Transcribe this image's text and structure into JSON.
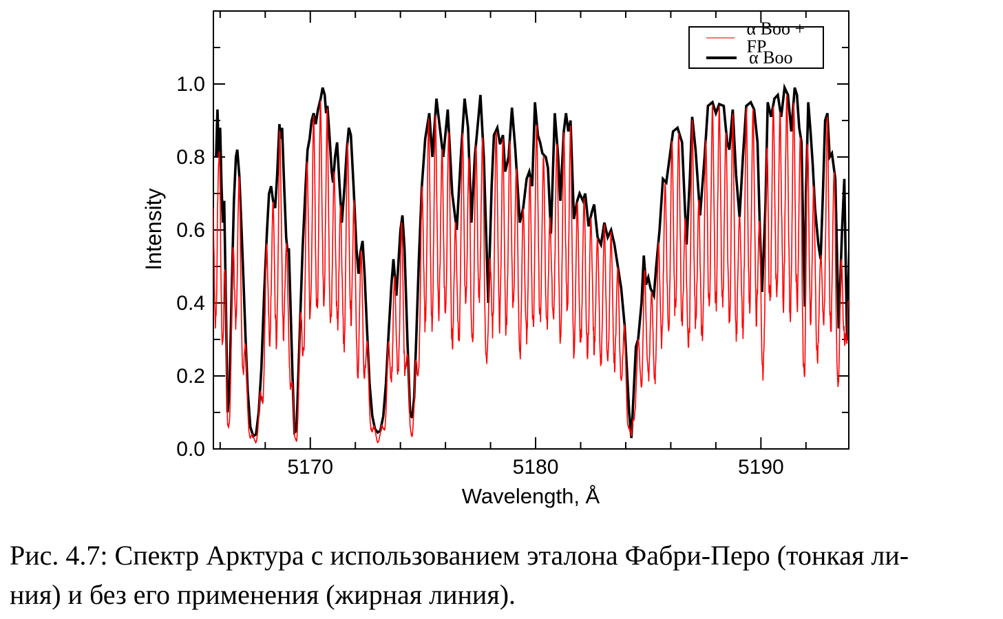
{
  "figure": {
    "caption_line1": "Рис. 4.7: Спектр Арктура с использованием эталона Фабри-Перо (тонкая ли-",
    "caption_line2": "ния) и без его применения (жирная линия)."
  },
  "axes": {
    "x_label": "Wavelength, Å",
    "y_label": "Intensity",
    "x_tick_labels": [
      "5170",
      "5180",
      "5190"
    ],
    "y_tick_labels": [
      "0.0",
      "0.2",
      "0.4",
      "0.6",
      "0.8",
      "1.0"
    ],
    "frame_color": "#000000"
  },
  "legend": {
    "entries": [
      {
        "label": "α Boo + FP",
        "color": "#ff7070",
        "thickness": 2
      },
      {
        "label": "α Boo",
        "color": "#000000",
        "thickness": 4
      }
    ]
  },
  "chart_data": {
    "type": "line",
    "title": "",
    "xlabel": "Wavelength, Å",
    "ylabel": "Intensity",
    "xlim": [
      5165.7,
      5193.9
    ],
    "ylim": [
      0,
      1.2
    ],
    "x_major_ticks": [
      5170,
      5180,
      5190
    ],
    "x_minor_tick_step": 2,
    "y_major_ticks": [
      0,
      0.2,
      0.4,
      0.6,
      0.8,
      1.0
    ],
    "y_minor_tick_step": 0.1,
    "grid": false,
    "legend_position": "top-right",
    "series": [
      {
        "name": "α Boo",
        "role": "stellar-spectrum-thick-line",
        "color": "#000000",
        "line_width": 3.6,
        "points": [
          [
            5165.82,
            0.8
          ],
          [
            5165.88,
            0.93
          ],
          [
            5165.94,
            0.8
          ],
          [
            5166.0,
            0.88
          ],
          [
            5166.06,
            0.72
          ],
          [
            5166.12,
            0.62
          ],
          [
            5166.18,
            0.68
          ],
          [
            5166.24,
            0.45
          ],
          [
            5166.33,
            0.1
          ],
          [
            5166.42,
            0.18
          ],
          [
            5166.52,
            0.45
          ],
          [
            5166.61,
            0.68
          ],
          [
            5166.7,
            0.8
          ],
          [
            5166.76,
            0.82
          ],
          [
            5166.85,
            0.75
          ],
          [
            5166.95,
            0.6
          ],
          [
            5167.04,
            0.45
          ],
          [
            5167.13,
            0.3
          ],
          [
            5167.22,
            0.16
          ],
          [
            5167.34,
            0.06
          ],
          [
            5167.47,
            0.035
          ],
          [
            5167.59,
            0.04
          ],
          [
            5167.71,
            0.1
          ],
          [
            5167.83,
            0.22
          ],
          [
            5167.95,
            0.42
          ],
          [
            5168.08,
            0.6
          ],
          [
            5168.17,
            0.7
          ],
          [
            5168.26,
            0.72
          ],
          [
            5168.35,
            0.68
          ],
          [
            5168.44,
            0.66
          ],
          [
            5168.53,
            0.75
          ],
          [
            5168.63,
            0.89
          ],
          [
            5168.69,
            0.85
          ],
          [
            5168.75,
            0.88
          ],
          [
            5168.84,
            0.72
          ],
          [
            5168.93,
            0.58
          ],
          [
            5168.99,
            0.54
          ],
          [
            5169.05,
            0.55
          ],
          [
            5169.11,
            0.42
          ],
          [
            5169.21,
            0.2
          ],
          [
            5169.3,
            0.045
          ],
          [
            5169.39,
            0.05
          ],
          [
            5169.48,
            0.22
          ],
          [
            5169.57,
            0.39
          ],
          [
            5169.66,
            0.55
          ],
          [
            5169.79,
            0.72
          ],
          [
            5169.88,
            0.82
          ],
          [
            5169.97,
            0.85
          ],
          [
            5170.06,
            0.9
          ],
          [
            5170.15,
            0.92
          ],
          [
            5170.24,
            0.89
          ],
          [
            5170.34,
            0.93
          ],
          [
            5170.46,
            0.96
          ],
          [
            5170.55,
            0.99
          ],
          [
            5170.64,
            0.97
          ],
          [
            5170.7,
            0.92
          ],
          [
            5170.76,
            0.94
          ],
          [
            5170.85,
            0.86
          ],
          [
            5170.95,
            0.76
          ],
          [
            5171.01,
            0.73
          ],
          [
            5171.1,
            0.8
          ],
          [
            5171.19,
            0.84
          ],
          [
            5171.3,
            0.72
          ],
          [
            5171.4,
            0.62
          ],
          [
            5171.52,
            0.72
          ],
          [
            5171.62,
            0.82
          ],
          [
            5171.71,
            0.88
          ],
          [
            5171.8,
            0.86
          ],
          [
            5171.92,
            0.72
          ],
          [
            5172.05,
            0.55
          ],
          [
            5172.14,
            0.48
          ],
          [
            5172.23,
            0.54
          ],
          [
            5172.32,
            0.57
          ],
          [
            5172.41,
            0.48
          ],
          [
            5172.5,
            0.35
          ],
          [
            5172.63,
            0.18
          ],
          [
            5172.75,
            0.09
          ],
          [
            5172.87,
            0.055
          ],
          [
            5172.99,
            0.045
          ],
          [
            5173.11,
            0.05
          ],
          [
            5173.24,
            0.09
          ],
          [
            5173.36,
            0.18
          ],
          [
            5173.48,
            0.32
          ],
          [
            5173.6,
            0.45
          ],
          [
            5173.69,
            0.52
          ],
          [
            5173.82,
            0.42
          ],
          [
            5174.0,
            0.6
          ],
          [
            5174.09,
            0.64
          ],
          [
            5174.18,
            0.55
          ],
          [
            5174.31,
            0.3
          ],
          [
            5174.43,
            0.1
          ],
          [
            5174.52,
            0.085
          ],
          [
            5174.61,
            0.14
          ],
          [
            5174.7,
            0.3
          ],
          [
            5174.82,
            0.52
          ],
          [
            5174.95,
            0.72
          ],
          [
            5175.1,
            0.85
          ],
          [
            5175.28,
            0.92
          ],
          [
            5175.42,
            0.8
          ],
          [
            5175.6,
            0.96
          ],
          [
            5175.75,
            0.88
          ],
          [
            5175.9,
            0.8
          ],
          [
            5176.1,
            0.93
          ],
          [
            5176.3,
            0.7
          ],
          [
            5176.5,
            0.6
          ],
          [
            5176.68,
            0.8
          ],
          [
            5176.85,
            0.96
          ],
          [
            5177.0,
            0.88
          ],
          [
            5177.15,
            0.62
          ],
          [
            5177.3,
            0.8
          ],
          [
            5177.45,
            0.9
          ],
          [
            5177.55,
            0.97
          ],
          [
            5177.7,
            0.8
          ],
          [
            5177.9,
            0.4
          ],
          [
            5178.05,
            0.72
          ],
          [
            5178.15,
            0.86
          ],
          [
            5178.3,
            0.88
          ],
          [
            5178.42,
            0.835
          ],
          [
            5178.55,
            0.86
          ],
          [
            5178.65,
            0.76
          ],
          [
            5178.8,
            0.8
          ],
          [
            5178.95,
            0.935
          ],
          [
            5179.1,
            0.82
          ],
          [
            5179.3,
            0.62
          ],
          [
            5179.45,
            0.66
          ],
          [
            5179.6,
            0.74
          ],
          [
            5179.72,
            0.76
          ],
          [
            5179.85,
            0.72
          ],
          [
            5179.97,
            0.95
          ],
          [
            5180.1,
            0.86
          ],
          [
            5180.2,
            0.84
          ],
          [
            5180.3,
            0.81
          ],
          [
            5180.45,
            0.8
          ],
          [
            5180.55,
            0.77
          ],
          [
            5180.68,
            0.59
          ],
          [
            5180.85,
            0.92
          ],
          [
            5181.0,
            0.8
          ],
          [
            5181.1,
            0.68
          ],
          [
            5181.25,
            0.87
          ],
          [
            5181.35,
            0.92
          ],
          [
            5181.45,
            0.87
          ],
          [
            5181.55,
            0.9
          ],
          [
            5181.7,
            0.63
          ],
          [
            5181.85,
            0.68
          ],
          [
            5181.95,
            0.7
          ],
          [
            5182.1,
            0.68
          ],
          [
            5182.2,
            0.7
          ],
          [
            5182.35,
            0.61
          ],
          [
            5182.5,
            0.65
          ],
          [
            5182.6,
            0.67
          ],
          [
            5182.75,
            0.58
          ],
          [
            5182.9,
            0.56
          ],
          [
            5183.05,
            0.62
          ],
          [
            5183.2,
            0.58
          ],
          [
            5183.35,
            0.6
          ],
          [
            5183.5,
            0.56
          ],
          [
            5183.65,
            0.5
          ],
          [
            5183.8,
            0.44
          ],
          [
            5183.95,
            0.34
          ],
          [
            5184.05,
            0.22
          ],
          [
            5184.15,
            0.1
          ],
          [
            5184.25,
            0.03
          ],
          [
            5184.35,
            0.15
          ],
          [
            5184.45,
            0.28
          ],
          [
            5184.55,
            0.3
          ],
          [
            5184.7,
            0.4
          ],
          [
            5184.8,
            0.53
          ],
          [
            5184.9,
            0.45
          ],
          [
            5185.0,
            0.47
          ],
          [
            5185.1,
            0.44
          ],
          [
            5185.25,
            0.42
          ],
          [
            5185.35,
            0.5
          ],
          [
            5185.5,
            0.6
          ],
          [
            5185.65,
            0.74
          ],
          [
            5185.8,
            0.73
          ],
          [
            5185.95,
            0.8
          ],
          [
            5186.1,
            0.87
          ],
          [
            5186.3,
            0.88
          ],
          [
            5186.5,
            0.84
          ],
          [
            5186.7,
            0.56
          ],
          [
            5186.85,
            0.75
          ],
          [
            5186.95,
            0.91
          ],
          [
            5187.1,
            0.82
          ],
          [
            5187.3,
            0.64
          ],
          [
            5187.5,
            0.8
          ],
          [
            5187.65,
            0.94
          ],
          [
            5187.85,
            0.95
          ],
          [
            5188.0,
            0.92
          ],
          [
            5188.15,
            0.945
          ],
          [
            5188.35,
            0.94
          ],
          [
            5188.5,
            0.84
          ],
          [
            5188.6,
            0.82
          ],
          [
            5188.75,
            0.93
          ],
          [
            5188.9,
            0.75
          ],
          [
            5189.05,
            0.635
          ],
          [
            5189.2,
            0.8
          ],
          [
            5189.35,
            0.94
          ],
          [
            5189.55,
            0.95
          ],
          [
            5189.7,
            0.93
          ],
          [
            5189.85,
            0.84
          ],
          [
            5189.95,
            0.61
          ],
          [
            5190.05,
            0.43
          ],
          [
            5190.2,
            0.66
          ],
          [
            5190.3,
            0.95
          ],
          [
            5190.45,
            0.91
          ],
          [
            5190.6,
            0.96
          ],
          [
            5190.75,
            0.97
          ],
          [
            5190.9,
            0.91
          ],
          [
            5191.05,
            0.99
          ],
          [
            5191.2,
            0.97
          ],
          [
            5191.35,
            0.87
          ],
          [
            5191.5,
            0.99
          ],
          [
            5191.6,
            0.97
          ],
          [
            5191.7,
            0.88
          ],
          [
            5191.8,
            0.84
          ],
          [
            5191.87,
            0.61
          ],
          [
            5191.95,
            0.39
          ],
          [
            5192.0,
            0.7
          ],
          [
            5192.1,
            0.95
          ],
          [
            5192.2,
            0.87
          ],
          [
            5192.3,
            0.78
          ],
          [
            5192.4,
            0.66
          ],
          [
            5192.55,
            0.56
          ],
          [
            5192.65,
            0.52
          ],
          [
            5192.75,
            0.7
          ],
          [
            5192.85,
            0.9
          ],
          [
            5192.95,
            0.92
          ],
          [
            5193.05,
            0.8
          ],
          [
            5193.15,
            0.81
          ],
          [
            5193.3,
            0.74
          ],
          [
            5193.45,
            0.33
          ],
          [
            5193.6,
            0.6
          ],
          [
            5193.7,
            0.74
          ],
          [
            5193.82,
            0.3
          ],
          [
            5193.92,
            0.55
          ],
          [
            5194.0,
            0.7
          ]
        ]
      },
      {
        "name": "α Boo + FP",
        "role": "spectrum-through-fabry-perot-etalon-thin-line",
        "color": "#ff0000",
        "line_width": 1.6,
        "derivation": "alpha Boo spectrum multiplied by periodic Fabry-Perot fringe transmission",
        "fringe": {
          "period_angstrom": 0.3,
          "min_transmission": 0.42,
          "profile_exponent": 1.6,
          "reference_wavelength": 5165.95,
          "depth_jitter": 0.05,
          "sample_step_angstrom": 0.015
        }
      }
    ]
  }
}
